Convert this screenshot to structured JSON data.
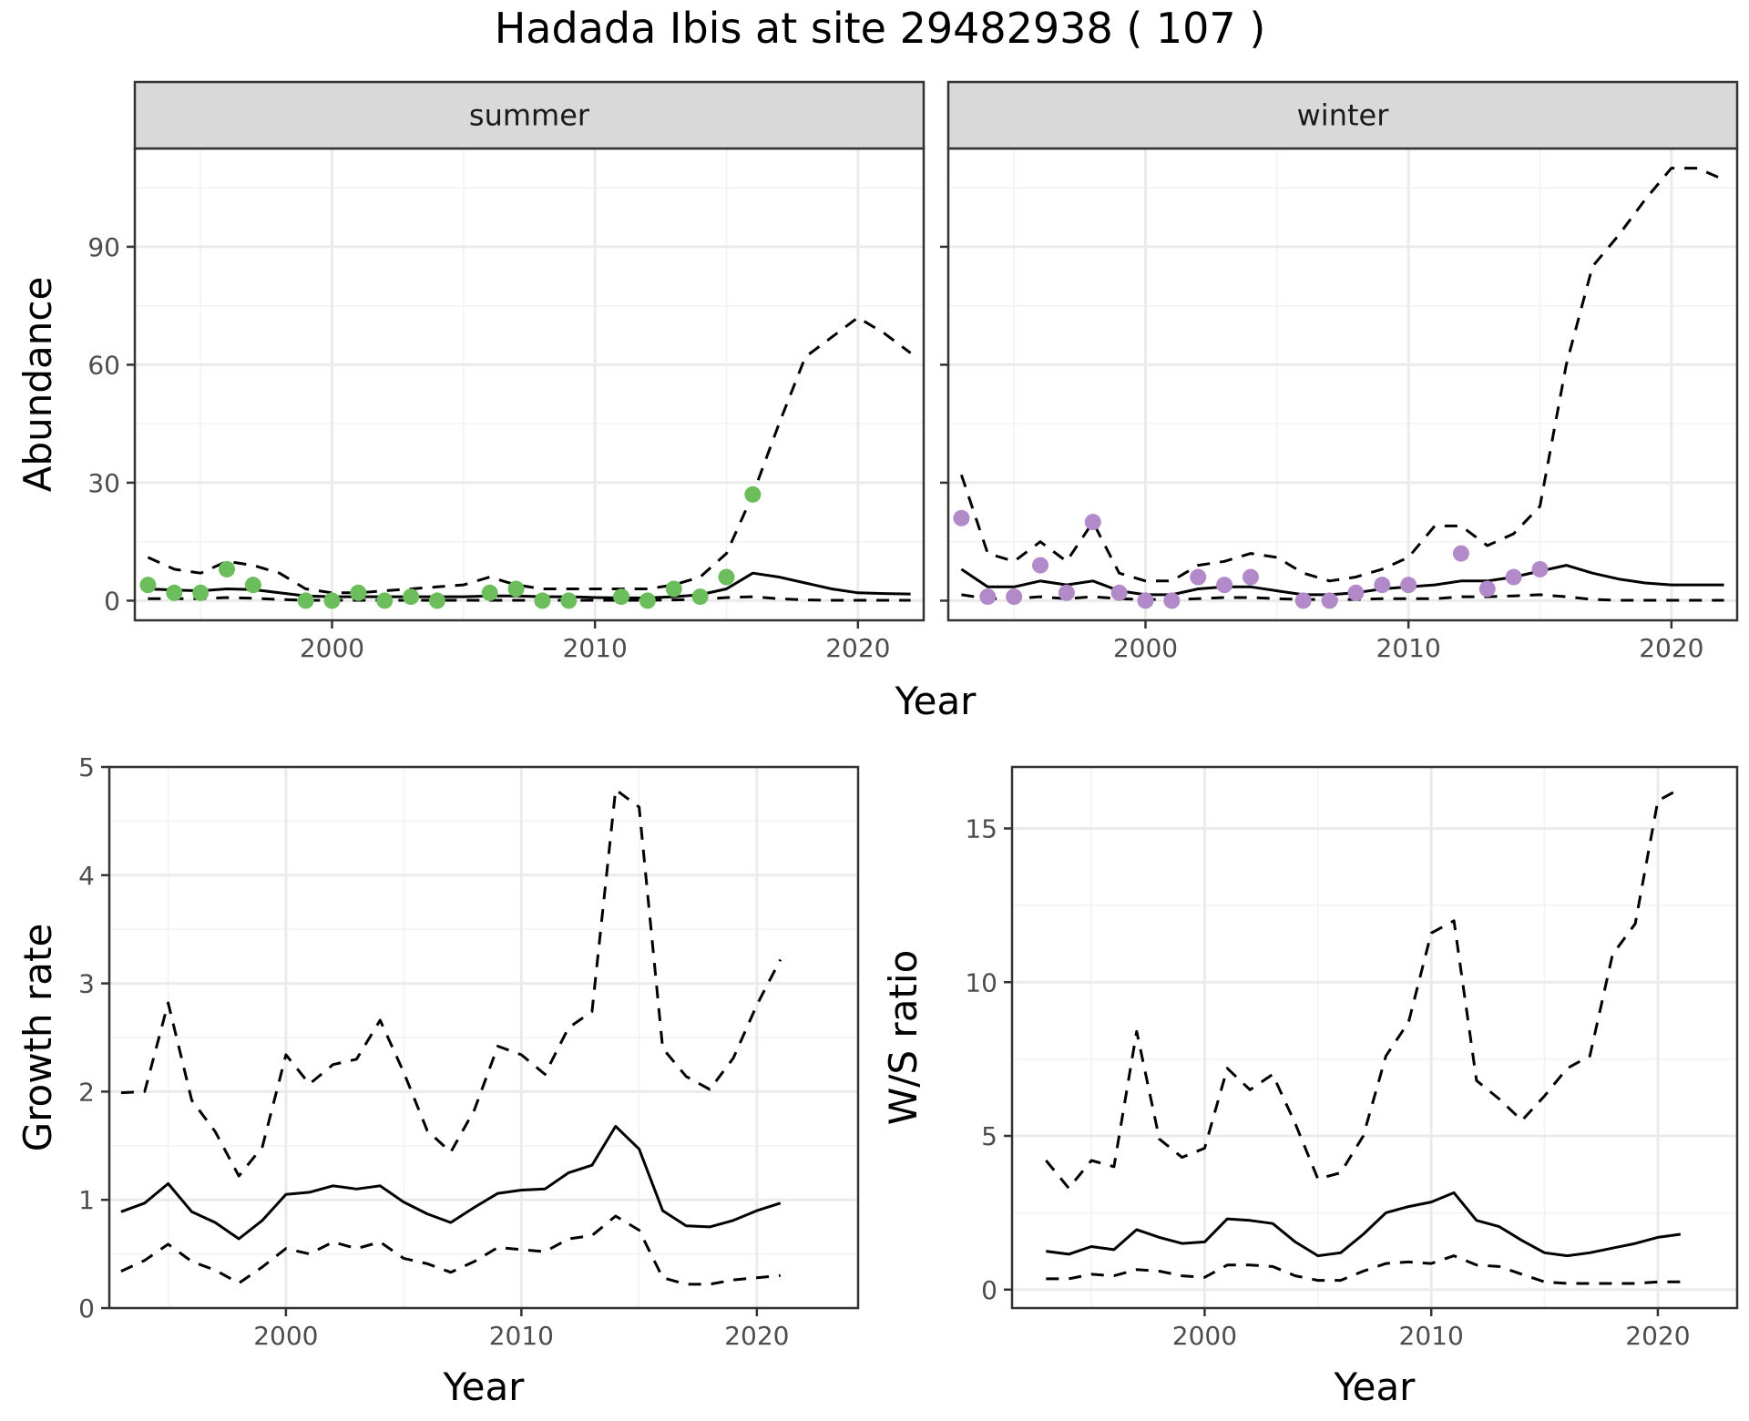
{
  "title": "Hadada Ibis at site 29482938 ( 107 )",
  "colors": {
    "summer_points": "#6cbd5c",
    "winter_points": "#b289c9",
    "line": "#000000",
    "panel_border": "#333333",
    "strip_fill": "#d9d9d9",
    "grid_major": "#ebebeb",
    "grid_minor": "#f2f2f2"
  },
  "chart_data": [
    {
      "type": "line",
      "facet": "summer",
      "xlabel": "Year",
      "ylabel": "Abundance",
      "xlim": [
        1992.5,
        2022.5
      ],
      "ylim": [
        -5,
        115
      ],
      "x_ticks": [
        2000,
        2010,
        2020
      ],
      "y_ticks": [
        0,
        30,
        60,
        90
      ],
      "grid": true,
      "series": [
        {
          "role": "estimate",
          "style": "solid",
          "x": [
            1993,
            1994,
            1995,
            1996,
            1997,
            1998,
            1999,
            2000,
            2001,
            2002,
            2003,
            2004,
            2005,
            2006,
            2007,
            2008,
            2009,
            2010,
            2011,
            2012,
            2013,
            2014,
            2015,
            2016,
            2017,
            2018,
            2019,
            2020,
            2021,
            2022
          ],
          "y": [
            3,
            2.7,
            2.5,
            3,
            2.8,
            2,
            1.2,
            1,
            1,
            1,
            1,
            1,
            1,
            1.2,
            1.2,
            1,
            1,
            0.8,
            0.7,
            0.7,
            1,
            1.5,
            3,
            7,
            6,
            4.5,
            3,
            2,
            1.8,
            1.7
          ]
        },
        {
          "role": "upper",
          "style": "dashed",
          "x": [
            1993,
            1994,
            1995,
            1996,
            1997,
            1998,
            1999,
            2000,
            2001,
            2002,
            2003,
            2004,
            2005,
            2006,
            2007,
            2008,
            2009,
            2010,
            2011,
            2012,
            2013,
            2014,
            2015,
            2016,
            2017,
            2018,
            2019,
            2020,
            2021,
            2022
          ],
          "y": [
            11,
            8,
            7,
            10,
            9,
            7,
            3,
            2,
            2,
            2.5,
            3,
            3.5,
            4,
            6,
            4,
            3,
            3,
            3,
            3,
            3,
            4,
            6,
            12,
            27,
            45,
            62,
            67,
            72,
            68,
            63
          ]
        },
        {
          "role": "lower",
          "style": "dashed",
          "x": [
            1993,
            1994,
            1995,
            1996,
            1997,
            1998,
            1999,
            2000,
            2001,
            2002,
            2003,
            2004,
            2005,
            2006,
            2007,
            2008,
            2009,
            2010,
            2011,
            2012,
            2013,
            2014,
            2015,
            2016,
            2017,
            2018,
            2019,
            2020,
            2021,
            2022
          ],
          "y": [
            0.5,
            0.5,
            0.5,
            0.8,
            0.6,
            0.3,
            0.1,
            0.1,
            0.1,
            0.1,
            0.1,
            0.1,
            0.1,
            0.1,
            0.1,
            0.1,
            0.1,
            0.1,
            0.1,
            0.1,
            0.2,
            0.3,
            0.8,
            1,
            0.5,
            0.2,
            0.1,
            0.1,
            0.1,
            0.1
          ]
        },
        {
          "role": "observed",
          "style": "points",
          "x": [
            1993,
            1994,
            1995,
            1996,
            1997,
            1999,
            2000,
            2001,
            2002,
            2003,
            2004,
            2006,
            2007,
            2008,
            2009,
            2011,
            2012,
            2013,
            2014,
            2015,
            2016
          ],
          "y": [
            4,
            2,
            2,
            8,
            4,
            0,
            0,
            2,
            0,
            1,
            0,
            2,
            3,
            0,
            0,
            1,
            0,
            3,
            1,
            6,
            27
          ]
        }
      ]
    },
    {
      "type": "line",
      "facet": "winter",
      "xlabel": "Year",
      "ylabel": "Abundance",
      "xlim": [
        1992.5,
        2022.5
      ],
      "ylim": [
        -5,
        115
      ],
      "x_ticks": [
        2000,
        2010,
        2020
      ],
      "y_ticks": [
        0,
        30,
        60,
        90
      ],
      "grid": true,
      "series": [
        {
          "role": "estimate",
          "style": "solid",
          "x": [
            1993,
            1994,
            1995,
            1996,
            1997,
            1998,
            1999,
            2000,
            2001,
            2002,
            2003,
            2004,
            2005,
            2006,
            2007,
            2008,
            2009,
            2010,
            2011,
            2012,
            2013,
            2014,
            2015,
            2016,
            2017,
            2018,
            2019,
            2020,
            2021,
            2022
          ],
          "y": [
            8,
            3.5,
            3.5,
            5,
            4,
            5,
            2.5,
            1.5,
            1.5,
            3,
            3.5,
            3.5,
            2.5,
            1.5,
            1.5,
            2,
            3,
            3.5,
            4,
            5,
            5,
            6,
            7.5,
            9,
            7,
            5.5,
            4.5,
            4,
            4,
            4
          ]
        },
        {
          "role": "upper",
          "style": "dashed",
          "x": [
            1993,
            1994,
            1995,
            1996,
            1997,
            1998,
            1999,
            2000,
            2001,
            2002,
            2003,
            2004,
            2005,
            2006,
            2007,
            2008,
            2009,
            2010,
            2011,
            2012,
            2013,
            2014,
            2015,
            2016,
            2017,
            2018,
            2019,
            2020,
            2021,
            2022
          ],
          "y": [
            32,
            12,
            10,
            15,
            10,
            20,
            7,
            5,
            5,
            9,
            10,
            12,
            11,
            7,
            5,
            6,
            8,
            11,
            19,
            19,
            14,
            17,
            24,
            60,
            85,
            93,
            102,
            110,
            110,
            107
          ]
        },
        {
          "role": "lower",
          "style": "dashed",
          "x": [
            1993,
            1994,
            1995,
            1996,
            1997,
            1998,
            1999,
            2000,
            2001,
            2002,
            2003,
            2004,
            2005,
            2006,
            2007,
            2008,
            2009,
            2010,
            2011,
            2012,
            2013,
            2014,
            2015,
            2016,
            2017,
            2018,
            2019,
            2020,
            2021,
            2022
          ],
          "y": [
            1.5,
            0.5,
            0.5,
            1,
            0.5,
            1,
            0.5,
            0.3,
            0.3,
            0.5,
            0.8,
            0.8,
            0.5,
            0.3,
            0.3,
            0.3,
            0.5,
            0.5,
            0.5,
            1,
            1,
            1.2,
            1.5,
            1,
            0.3,
            0.1,
            0.1,
            0.1,
            0.1,
            0.1
          ]
        },
        {
          "role": "observed",
          "style": "points",
          "x": [
            1993,
            1994,
            1995,
            1996,
            1997,
            1998,
            1999,
            2000,
            2001,
            2002,
            2003,
            2004,
            2006,
            2007,
            2008,
            2009,
            2010,
            2012,
            2013,
            2014,
            2015
          ],
          "y": [
            21,
            1,
            1,
            9,
            2,
            20,
            2,
            0,
            0,
            6,
            4,
            6,
            0,
            0,
            2,
            4,
            4,
            12,
            3,
            6,
            8
          ]
        }
      ]
    },
    {
      "type": "line",
      "xlabel": "Year",
      "ylabel": "Growth rate",
      "xlim": [
        1992.5,
        2024.3
      ],
      "ylim": [
        0,
        5
      ],
      "x_ticks": [
        2000,
        2010,
        2020
      ],
      "y_ticks": [
        0,
        1,
        2,
        3,
        4,
        5
      ],
      "grid": true,
      "series": [
        {
          "role": "estimate",
          "style": "solid",
          "x": [
            1993,
            1994,
            1995,
            1996,
            1997,
            1998,
            1999,
            2000,
            2001,
            2002,
            2003,
            2004,
            2005,
            2006,
            2007,
            2008,
            2009,
            2010,
            2011,
            2012,
            2013,
            2014,
            2015,
            2016,
            2017,
            2018,
            2019,
            2020,
            2021
          ],
          "y": [
            0.89,
            0.97,
            1.15,
            0.89,
            0.79,
            0.64,
            0.81,
            1.05,
            1.07,
            1.13,
            1.1,
            1.13,
            0.98,
            0.87,
            0.79,
            0.93,
            1.06,
            1.09,
            1.1,
            1.25,
            1.32,
            1.68,
            1.47,
            0.9,
            0.76,
            0.75,
            0.81,
            0.9,
            0.97
          ]
        },
        {
          "role": "upper",
          "style": "dashed",
          "x": [
            1993,
            1994,
            1995,
            1996,
            1997,
            1998,
            1999,
            2000,
            2001,
            2002,
            2003,
            2004,
            2005,
            2006,
            2007,
            2008,
            2009,
            2010,
            2011,
            2012,
            2013,
            2014,
            2015,
            2016,
            2017,
            2018,
            2019,
            2020,
            2021
          ],
          "y": [
            1.99,
            2,
            2.82,
            1.92,
            1.63,
            1.22,
            1.49,
            2.34,
            2.07,
            2.25,
            2.3,
            2.66,
            2.18,
            1.64,
            1.44,
            1.83,
            2.42,
            2.34,
            2.16,
            2.59,
            2.74,
            4.79,
            4.63,
            2.4,
            2.14,
            2.02,
            2.31,
            2.8,
            3.22
          ]
        },
        {
          "role": "lower",
          "style": "dashed",
          "x": [
            1993,
            1994,
            1995,
            1996,
            1997,
            1998,
            1999,
            2000,
            2001,
            2002,
            2003,
            2004,
            2005,
            2006,
            2007,
            2008,
            2009,
            2010,
            2011,
            2012,
            2013,
            2014,
            2015,
            2016,
            2017,
            2018,
            2019,
            2020,
            2021
          ],
          "y": [
            0.34,
            0.44,
            0.59,
            0.43,
            0.35,
            0.23,
            0.38,
            0.55,
            0.5,
            0.61,
            0.55,
            0.61,
            0.46,
            0.41,
            0.33,
            0.43,
            0.56,
            0.54,
            0.52,
            0.64,
            0.67,
            0.85,
            0.72,
            0.28,
            0.22,
            0.22,
            0.26,
            0.28,
            0.3
          ]
        }
      ]
    },
    {
      "type": "line",
      "xlabel": "Year",
      "ylabel": "W/S ratio",
      "xlim": [
        1991.5,
        2023.5
      ],
      "ylim": [
        -0.6,
        17
      ],
      "x_ticks": [
        2000,
        2010,
        2020
      ],
      "y_ticks": [
        0,
        5,
        10,
        15
      ],
      "grid": true,
      "series": [
        {
          "role": "estimate",
          "style": "solid",
          "x": [
            1993,
            1994,
            1995,
            1996,
            1997,
            1998,
            1999,
            2000,
            2001,
            2002,
            2003,
            2004,
            2005,
            2006,
            2007,
            2008,
            2009,
            2010,
            2011,
            2012,
            2013,
            2014,
            2015,
            2016,
            2017,
            2018,
            2019,
            2020,
            2021
          ],
          "y": [
            1.25,
            1.15,
            1.4,
            1.3,
            1.95,
            1.7,
            1.5,
            1.55,
            2.3,
            2.25,
            2.15,
            1.55,
            1.1,
            1.2,
            1.8,
            2.5,
            2.7,
            2.85,
            3.15,
            2.25,
            2.05,
            1.6,
            1.2,
            1.1,
            1.2,
            1.35,
            1.5,
            1.7,
            1.8
          ]
        },
        {
          "role": "upper",
          "style": "dashed",
          "x": [
            1993,
            1994,
            1995,
            1996,
            1997,
            1998,
            1999,
            2000,
            2001,
            2002,
            2003,
            2004,
            2005,
            2006,
            2007,
            2008,
            2009,
            2010,
            2011,
            2012,
            2013,
            2014,
            2015,
            2016,
            2017,
            2018,
            2019,
            2020,
            2021
          ],
          "y": [
            4.2,
            3.3,
            4.2,
            4,
            8.4,
            4.9,
            4.3,
            4.6,
            7.2,
            6.5,
            7,
            5.4,
            3.6,
            3.8,
            5,
            7.6,
            8.7,
            11.6,
            12,
            6.8,
            6.2,
            5.5,
            6.3,
            7.2,
            7.6,
            10.9,
            11.9,
            15.9,
            16.3
          ]
        },
        {
          "role": "lower",
          "style": "dashed",
          "x": [
            1993,
            1994,
            1995,
            1996,
            1997,
            1998,
            1999,
            2000,
            2001,
            2002,
            2003,
            2004,
            2005,
            2006,
            2007,
            2008,
            2009,
            2010,
            2011,
            2012,
            2013,
            2014,
            2015,
            2016,
            2017,
            2018,
            2019,
            2020,
            2021
          ],
          "y": [
            0.35,
            0.35,
            0.5,
            0.45,
            0.65,
            0.6,
            0.45,
            0.4,
            0.8,
            0.8,
            0.75,
            0.45,
            0.3,
            0.3,
            0.6,
            0.85,
            0.9,
            0.85,
            1.1,
            0.8,
            0.75,
            0.5,
            0.25,
            0.2,
            0.2,
            0.2,
            0.2,
            0.25,
            0.25
          ]
        }
      ]
    }
  ]
}
